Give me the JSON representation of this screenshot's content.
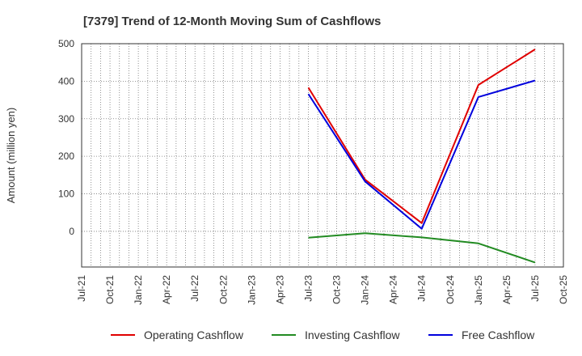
{
  "chart_data": {
    "type": "line",
    "title": "[7379]  Trend of 12-Month Moving Sum of Cashflows",
    "xlabel": "",
    "ylabel": "Amount (million yen)",
    "x_ticks": [
      "Jul-21",
      "Oct-21",
      "Jan-22",
      "Apr-22",
      "Jul-22",
      "Oct-22",
      "Jan-23",
      "Apr-23",
      "Jul-23",
      "Oct-23",
      "Jan-24",
      "Apr-24",
      "Jul-24",
      "Oct-24",
      "Jan-25",
      "Apr-25",
      "Jul-25",
      "Oct-25"
    ],
    "y_ticks": [
      0,
      100,
      200,
      300,
      400,
      500
    ],
    "ylim": [
      -95,
      500
    ],
    "grid": true,
    "legend_position": "bottom",
    "series": [
      {
        "name": "Operating Cashflow",
        "color": "#e00000",
        "x": [
          "Jul-23",
          "Jan-24",
          "Jul-24",
          "Jan-25",
          "Jul-25"
        ],
        "values": [
          383,
          138,
          22,
          390,
          485
        ]
      },
      {
        "name": "Investing Cashflow",
        "color": "#228b22",
        "x": [
          "Jul-23",
          "Jan-24",
          "Jul-24",
          "Jan-25",
          "Jul-25"
        ],
        "values": [
          -17,
          -5,
          -16,
          -32,
          -83
        ]
      },
      {
        "name": "Free Cashflow",
        "color": "#0000dd",
        "x": [
          "Jul-23",
          "Jan-24",
          "Jul-24",
          "Jan-25",
          "Jul-25"
        ],
        "values": [
          366,
          133,
          7,
          358,
          402
        ]
      }
    ]
  }
}
